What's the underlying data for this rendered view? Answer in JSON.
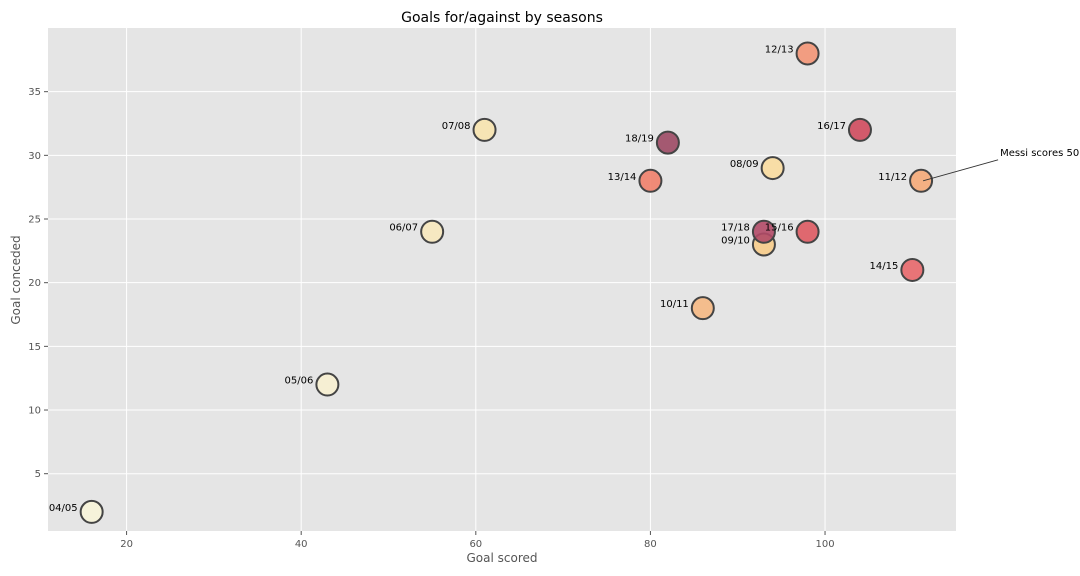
{
  "chart_data": {
    "type": "scatter",
    "title": "Goals for/against by seasons",
    "xlabel": "Goal scored",
    "ylabel": "Goal conceded",
    "xlim": [
      11,
      115
    ],
    "ylim": [
      0.5,
      40
    ],
    "xticks": [
      20,
      40,
      60,
      80,
      100
    ],
    "yticks": [
      5,
      10,
      15,
      20,
      25,
      30,
      35
    ],
    "grid": true,
    "background": "#e5e5e5",
    "points": [
      {
        "label": "04/05",
        "x": 16,
        "y": 2,
        "color": "#f7f4d8"
      },
      {
        "label": "05/06",
        "x": 43,
        "y": 12,
        "color": "#f7f0d0"
      },
      {
        "label": "06/07",
        "x": 55,
        "y": 24,
        "color": "#f7e8bd"
      },
      {
        "label": "07/08",
        "x": 61,
        "y": 32,
        "color": "#f7e3ae"
      },
      {
        "label": "08/09",
        "x": 94,
        "y": 29,
        "color": "#f9db9e"
      },
      {
        "label": "09/10",
        "x": 93,
        "y": 23,
        "color": "#f7cc8a"
      },
      {
        "label": "10/11",
        "x": 86,
        "y": 18,
        "color": "#f5b883"
      },
      {
        "label": "11/12",
        "x": 111,
        "y": 28,
        "color": "#f5aa78"
      },
      {
        "label": "12/13",
        "x": 98,
        "y": 38,
        "color": "#f39575"
      },
      {
        "label": "13/14",
        "x": 80,
        "y": 28,
        "color": "#f0806a"
      },
      {
        "label": "14/15",
        "x": 110,
        "y": 21,
        "color": "#e8676a"
      },
      {
        "label": "15/16",
        "x": 98,
        "y": 24,
        "color": "#de5a62"
      },
      {
        "label": "16/17",
        "x": 104,
        "y": 32,
        "color": "#cf4a5d"
      },
      {
        "label": "17/18",
        "x": 93,
        "y": 24,
        "color": "#b14a67"
      },
      {
        "label": "18/19",
        "x": 82,
        "y": 31,
        "color": "#9c4964"
      }
    ],
    "annotation": {
      "text": "Messi scores 50",
      "target_label": "11/12"
    }
  }
}
